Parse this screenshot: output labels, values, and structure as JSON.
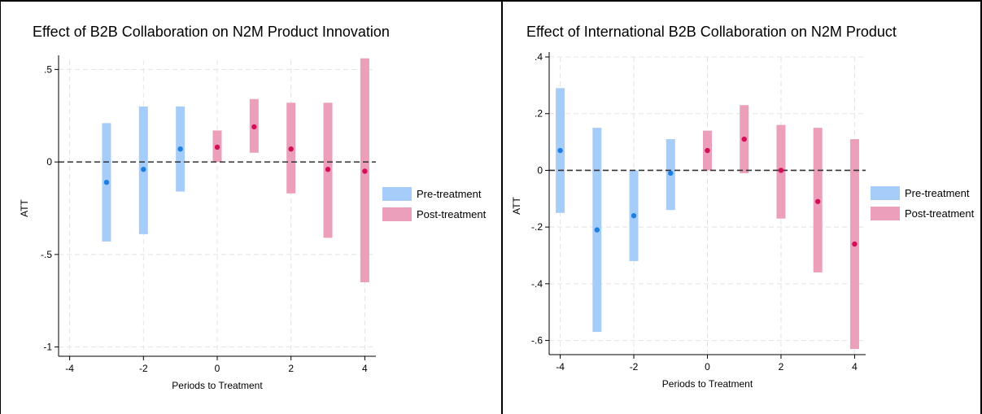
{
  "colors": {
    "pre": "#a6cdfa",
    "post": "#ec9fba",
    "pre_point": "#1f7fe0",
    "post_point": "#d2105a",
    "grid": "#e4e4e4",
    "zero_line": "#333333",
    "axis": "#000000"
  },
  "legend": {
    "pre_label": "Pre-treatment",
    "post_label": "Post-treatment"
  },
  "chart_data": [
    {
      "type": "errorbar",
      "title": "Effect of B2B Collaboration on N2M Product Innovation",
      "xlabel": "Periods to Treatment",
      "ylabel": "ATT",
      "xlim": [
        -4.3,
        4.3
      ],
      "ylim": [
        -1.05,
        0.55
      ],
      "xticks": [
        -4,
        -2,
        0,
        2,
        4
      ],
      "xtick_labels": [
        "-4",
        "-2",
        "0",
        "2",
        "4"
      ],
      "yticks": [
        0.5,
        0,
        -0.5,
        -1
      ],
      "ytick_labels": [
        ".5",
        "0",
        "-.5",
        "-1"
      ],
      "grid": true,
      "reference_line": 0,
      "legend_position": "right",
      "series": [
        {
          "name": "Pre-treatment",
          "points": [
            {
              "x": -3,
              "estimate": -0.11,
              "lower": -0.43,
              "upper": 0.21
            },
            {
              "x": -2,
              "estimate": -0.04,
              "lower": -0.39,
              "upper": 0.3
            },
            {
              "x": -1,
              "estimate": 0.07,
              "lower": -0.16,
              "upper": 0.3
            }
          ]
        },
        {
          "name": "Post-treatment",
          "points": [
            {
              "x": 0,
              "estimate": 0.08,
              "lower": 0.0,
              "upper": 0.17
            },
            {
              "x": 1,
              "estimate": 0.19,
              "lower": 0.05,
              "upper": 0.34
            },
            {
              "x": 2,
              "estimate": 0.07,
              "lower": -0.17,
              "upper": 0.32
            },
            {
              "x": 3,
              "estimate": -0.04,
              "lower": -0.41,
              "upper": 0.32
            },
            {
              "x": 4,
              "estimate": -0.05,
              "lower": -0.65,
              "upper": 0.56
            }
          ]
        }
      ]
    },
    {
      "type": "errorbar",
      "title": "Effect of International B2B Collaboration on N2M Product",
      "xlabel": "Periods to Treatment",
      "ylabel": "ATT",
      "xlim": [
        -4.3,
        4.3
      ],
      "ylim": [
        -0.65,
        0.4
      ],
      "xticks": [
        -4,
        -2,
        0,
        2,
        4
      ],
      "xtick_labels": [
        "-4",
        "-2",
        "0",
        "2",
        "4"
      ],
      "yticks": [
        0.4,
        0.2,
        0,
        -0.2,
        -0.4,
        -0.6
      ],
      "ytick_labels": [
        ".4",
        ".2",
        "0",
        "-.2",
        "-.4",
        "-.6"
      ],
      "grid": true,
      "reference_line": 0,
      "legend_position": "right",
      "series": [
        {
          "name": "Pre-treatment",
          "points": [
            {
              "x": -4,
              "estimate": 0.07,
              "lower": -0.15,
              "upper": 0.29
            },
            {
              "x": -3,
              "estimate": -0.21,
              "lower": -0.57,
              "upper": 0.15
            },
            {
              "x": -2,
              "estimate": -0.16,
              "lower": -0.32,
              "upper": 0.0
            },
            {
              "x": -1,
              "estimate": -0.01,
              "lower": -0.14,
              "upper": 0.11
            }
          ]
        },
        {
          "name": "Post-treatment",
          "points": [
            {
              "x": 0,
              "estimate": 0.07,
              "lower": 0.0,
              "upper": 0.14
            },
            {
              "x": 1,
              "estimate": 0.11,
              "lower": -0.01,
              "upper": 0.23
            },
            {
              "x": 2,
              "estimate": 0.0,
              "lower": -0.17,
              "upper": 0.16
            },
            {
              "x": 3,
              "estimate": -0.11,
              "lower": -0.36,
              "upper": 0.15
            },
            {
              "x": 4,
              "estimate": -0.26,
              "lower": -0.63,
              "upper": 0.11
            }
          ]
        }
      ]
    }
  ]
}
